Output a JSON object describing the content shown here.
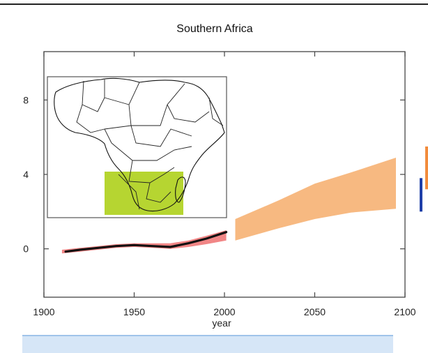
{
  "chart_data": {
    "type": "area",
    "title": "Southern Africa",
    "xlabel": "year",
    "ylabel": "",
    "xlim": [
      1900,
      2100
    ],
    "ylim": [
      -2.6,
      10.6
    ],
    "x_ticks": [
      1900,
      1950,
      2000,
      2050,
      2100
    ],
    "y_ticks": [
      0,
      4,
      8
    ],
    "grid": false,
    "series": [
      {
        "style": "band",
        "color": "#f08080",
        "x": [
          1910,
          1920,
          1930,
          1940,
          1950,
          1960,
          1970,
          1980,
          1990,
          2001
        ],
        "lower": [
          -0.25,
          -0.15,
          -0.05,
          0.05,
          0.1,
          0.05,
          0.0,
          0.1,
          0.25,
          0.45
        ],
        "upper": [
          -0.05,
          0.05,
          0.15,
          0.25,
          0.3,
          0.3,
          0.3,
          0.45,
          0.7,
          1.0
        ]
      },
      {
        "style": "line",
        "color": "#111111",
        "x": [
          1912,
          1920,
          1930,
          1940,
          1950,
          1960,
          1970,
          1980,
          1990,
          2001
        ],
        "values": [
          -0.15,
          -0.05,
          0.05,
          0.15,
          0.2,
          0.15,
          0.1,
          0.3,
          0.55,
          0.9
        ]
      },
      {
        "style": "band",
        "color": "#f7b57a",
        "x": [
          2006,
          2030,
          2050,
          2070,
          2095
        ],
        "lower": [
          0.45,
          1.1,
          1.6,
          1.95,
          2.15
        ],
        "upper": [
          1.6,
          2.6,
          3.5,
          4.1,
          4.9
        ]
      }
    ],
    "side_bars": [
      {
        "color": "#f28c3c",
        "lower": 3.2,
        "upper": 5.5
      },
      {
        "color": "#1f3fa8",
        "lower": 2.0,
        "upper": 3.8
      }
    ]
  },
  "inset": {
    "highlight_color": "#b6d531"
  }
}
